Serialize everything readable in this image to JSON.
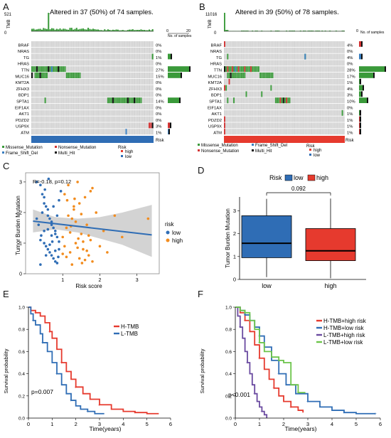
{
  "panels": {
    "A": {
      "letter": "A",
      "title": "Altered in 37 (50%) of 74 samples.",
      "tmb_label": "TMB",
      "tmb_max": "521",
      "tmb_min": "0",
      "nsamp_max": "20",
      "nsamp_min": "0",
      "nsamp_label": "No. of samples",
      "risk_label": "Risk",
      "genes": [
        {
          "name": "BRAF",
          "pct": "0%"
        },
        {
          "name": "NRAS",
          "pct": "0%"
        },
        {
          "name": "TG",
          "pct": "1%"
        },
        {
          "name": "HRAS",
          "pct": "0%"
        },
        {
          "name": "TTN",
          "pct": "27%"
        },
        {
          "name": "MUC16",
          "pct": "15%"
        },
        {
          "name": "KMT2A",
          "pct": "0%"
        },
        {
          "name": "ZFHX3",
          "pct": "0%"
        },
        {
          "name": "BDP1",
          "pct": "0%"
        },
        {
          "name": "SPTA1",
          "pct": "14%"
        },
        {
          "name": "EIF1AX",
          "pct": "0%"
        },
        {
          "name": "AKT1",
          "pct": "0%"
        },
        {
          "name": "PDZD2",
          "pct": "0%"
        },
        {
          "name": "USP9X",
          "pct": "3%"
        },
        {
          "name": "ATM",
          "pct": "1%"
        }
      ],
      "legend": [
        "Missense_Mutation",
        "Nonsense_Mutation",
        "Frame_Shift_Del",
        "Multi_Hit"
      ],
      "risk_legend": [
        "high",
        "low"
      ]
    },
    "B": {
      "letter": "B",
      "title": "Altered in 39 (50%) of 78 samples.",
      "tmb_label": "TMB",
      "tmb_max": "11016",
      "tmb_min": "0",
      "nsamp_max": "",
      "nsamp_min": "0",
      "nsamp_label": "No. of samples",
      "risk_label": "Risk",
      "genes": [
        {
          "name": "BRAF",
          "pct": "4%"
        },
        {
          "name": "NRAS",
          "pct": "0%"
        },
        {
          "name": "TG",
          "pct": "4%"
        },
        {
          "name": "HRAS",
          "pct": "0%"
        },
        {
          "name": "TTN",
          "pct": "28%"
        },
        {
          "name": "MUC16",
          "pct": "17%"
        },
        {
          "name": "KMT2A",
          "pct": "1%"
        },
        {
          "name": "ZFHX3",
          "pct": "4%"
        },
        {
          "name": "BDP1",
          "pct": "3%"
        },
        {
          "name": "SPTA1",
          "pct": "10%"
        },
        {
          "name": "EIF1AX",
          "pct": "0%"
        },
        {
          "name": "AKT1",
          "pct": "1%"
        },
        {
          "name": "PDZD2",
          "pct": "1%"
        },
        {
          "name": "USP9X",
          "pct": "1%"
        },
        {
          "name": "ATM",
          "pct": "1%"
        }
      ],
      "legend": [
        "Missense_Mutation",
        "Frame_Shift_Del",
        "Nonsense_Mutation",
        "Multi_Hit"
      ],
      "risk_legend": [
        "high",
        "low"
      ]
    },
    "C": {
      "letter": "C",
      "annotation": "R=-0.18, p=0.12",
      "ylabel": "Tumor Burden Mutation",
      "xlabel": "Risk score",
      "legend_title": "risk",
      "legend": [
        "low",
        "high"
      ]
    },
    "D": {
      "letter": "D",
      "legend_title": "Risk",
      "legend": [
        "low",
        "high"
      ],
      "pvalue": "0.092",
      "ylabel": "Tumor Burden Mutation"
    },
    "E": {
      "letter": "E",
      "legend": [
        "H-TMB",
        "L-TMB"
      ],
      "pvalue": "p=0.007",
      "ylabel": "Survival probability",
      "xlabel": "Time(years)"
    },
    "F": {
      "letter": "F",
      "legend": [
        "H-TMB+high risk",
        "H-TMB+low risk",
        "L-TMB+high risk",
        "L-TMB+low risk"
      ],
      "pvalue": "p<0.001",
      "ylabel": "Survival probability",
      "xlabel": "Time(years)"
    }
  },
  "colors": {
    "missense": "#3a9a3a",
    "nonsense": "#d33434",
    "frameshift": "#3a7fc1",
    "multihit": "#111111",
    "high": "#e63a2e",
    "low": "#2f6db5",
    "orange": "#f28c1e",
    "gray_bg": "#d3d3d3"
  },
  "chart_data": [
    {
      "type": "scatter",
      "title": "",
      "xlabel": "Risk score",
      "ylabel": "Tumor Burden Mutation",
      "xlim": [
        0,
        3.6
      ],
      "ylim": [
        0,
        3.3
      ],
      "xticks": [
        "1",
        "2",
        "3"
      ],
      "yticks": [
        "0",
        "1",
        "2",
        "3"
      ],
      "series": [
        {
          "name": "low",
          "x": [
            0.3,
            0.4,
            0.45,
            0.5,
            0.5,
            0.55,
            0.6,
            0.6,
            0.65,
            0.7,
            0.7,
            0.75,
            0.8,
            0.8,
            0.85,
            0.35,
            0.4,
            0.5,
            0.55,
            0.6,
            0.65,
            0.7,
            0.75,
            0.8,
            0.85,
            0.9,
            0.9,
            0.45,
            0.6,
            0.7,
            0.3,
            0.5,
            0.65,
            0.8,
            0.9,
            0.55,
            0.75,
            0.4,
            0.85,
            0.95,
            0.62,
            0.72,
            0.52,
            0.42,
            0.88
          ],
          "y": [
            3.0,
            2.9,
            2.6,
            2.5,
            2.3,
            2.2,
            2.1,
            1.9,
            1.8,
            1.7,
            1.6,
            1.5,
            1.4,
            1.3,
            1.2,
            1.6,
            1.1,
            1.0,
            0.9,
            0.8,
            0.7,
            0.6,
            0.5,
            0.4,
            0.35,
            1.05,
            0.8,
            2.0,
            1.45,
            1.25,
            1.8,
            1.4,
            0.95,
            0.75,
            2.4,
            0.6,
            2.2,
            0.3,
            1.9,
            2.7,
            3.1,
            1.05,
            2.75,
            1.25,
            0.55
          ]
        },
        {
          "name": "high",
          "x": [
            1.0,
            1.05,
            1.1,
            1.15,
            1.2,
            1.25,
            1.3,
            1.35,
            1.4,
            1.45,
            1.5,
            1.55,
            1.6,
            1.65,
            1.7,
            1.75,
            1.8,
            1.9,
            2.0,
            2.1,
            1.05,
            1.15,
            1.25,
            1.35,
            1.45,
            1.55,
            1.65,
            1.75,
            1.1,
            1.2,
            1.3,
            1.4,
            1.5,
            1.6,
            1.7,
            1.8,
            2.2,
            2.4,
            2.6,
            3.3,
            1.0,
            1.12,
            1.22,
            1.32,
            1.42,
            1.52
          ],
          "y": [
            1.2,
            0.9,
            1.5,
            2.9,
            0.7,
            1.8,
            2.2,
            1.0,
            3.0,
            0.5,
            1.3,
            0.8,
            2.5,
            1.6,
            0.6,
            1.1,
            0.4,
            2.0,
            0.9,
            1.4,
            2.6,
            1.9,
            0.3,
            1.7,
            2.3,
            1.05,
            0.75,
            2.7,
            0.55,
            1.35,
            2.1,
            0.85,
            1.95,
            0.45,
            1.25,
            2.8,
            0.7,
            1.9,
            1.2,
            1.8,
            0.65,
            2.4,
            1.55,
            2.45,
            1.15,
            0.35
          ]
        }
      ],
      "trend": {
        "x": [
          0.2,
          3.4
        ],
        "y": [
          1.72,
          1.27
        ]
      }
    },
    {
      "type": "box",
      "title": "",
      "categories": [
        "low",
        "high"
      ],
      "ylabel": "Tumor Burden Mutation",
      "ylim": [
        0,
        3.6
      ],
      "yticks": [
        "0",
        "1",
        "2",
        "3"
      ],
      "boxes": [
        {
          "name": "low",
          "min": 0.1,
          "q1": 0.95,
          "median": 1.58,
          "q3": 2.78,
          "max": 3.52
        },
        {
          "name": "high",
          "min": 0.05,
          "q1": 0.82,
          "median": 1.25,
          "q3": 2.22,
          "max": 3.53
        }
      ],
      "annotation": "0.092"
    },
    {
      "type": "line",
      "title": "",
      "xlabel": "Time(years)",
      "ylabel": "Survival probability",
      "xlim": [
        0,
        6
      ],
      "ylim": [
        0,
        1
      ],
      "xticks": [
        "0",
        "1",
        "2",
        "3",
        "4",
        "5",
        "6"
      ],
      "yticks": [
        "0.0",
        "0.2",
        "0.4",
        "0.6",
        "0.8",
        "1.0"
      ],
      "series": [
        {
          "name": "H-TMB",
          "x": [
            0,
            0.1,
            0.3,
            0.5,
            0.7,
            0.9,
            1.0,
            1.2,
            1.4,
            1.6,
            1.8,
            2.0,
            2.3,
            2.6,
            3.0,
            3.5,
            4.0,
            4.5,
            5.0,
            5.5
          ],
          "y": [
            1.0,
            0.97,
            0.95,
            0.92,
            0.86,
            0.78,
            0.72,
            0.62,
            0.5,
            0.42,
            0.35,
            0.28,
            0.22,
            0.17,
            0.12,
            0.08,
            0.06,
            0.05,
            0.04,
            0.04
          ]
        },
        {
          "name": "L-TMB",
          "x": [
            0,
            0.1,
            0.2,
            0.3,
            0.5,
            0.6,
            0.8,
            1.0,
            1.2,
            1.4,
            1.6,
            1.8,
            2.0,
            2.2,
            2.5,
            2.8,
            3.2
          ],
          "y": [
            1.0,
            0.94,
            0.88,
            0.84,
            0.76,
            0.68,
            0.6,
            0.5,
            0.4,
            0.3,
            0.22,
            0.16,
            0.11,
            0.08,
            0.06,
            0.04,
            0.04
          ]
        }
      ]
    },
    {
      "type": "line",
      "title": "",
      "xlabel": "Time(years)",
      "ylabel": "Survival probability",
      "xlim": [
        0,
        6
      ],
      "ylim": [
        0,
        1
      ],
      "xticks": [
        "0",
        "1",
        "2",
        "3",
        "4",
        "5",
        "6"
      ],
      "yticks": [
        "0.0",
        "0.2",
        "0.4",
        "0.6",
        "0.8",
        "1.0"
      ],
      "series": [
        {
          "name": "H-TMB+high risk",
          "x": [
            0,
            0.2,
            0.4,
            0.6,
            0.8,
            1.0,
            1.2,
            1.4,
            1.6,
            1.8,
            2.0,
            2.3,
            2.6,
            2.8
          ],
          "y": [
            1.0,
            0.95,
            0.88,
            0.78,
            0.66,
            0.54,
            0.44,
            0.35,
            0.27,
            0.2,
            0.15,
            0.1,
            0.07,
            0.05
          ]
        },
        {
          "name": "H-TMB+low risk",
          "x": [
            0,
            0.2,
            0.4,
            0.6,
            0.8,
            1.0,
            1.2,
            1.5,
            1.8,
            2.1,
            2.5,
            3.0,
            3.5,
            4.0,
            4.5,
            5.0,
            5.5,
            5.8
          ],
          "y": [
            1.0,
            0.97,
            0.93,
            0.88,
            0.82,
            0.74,
            0.64,
            0.52,
            0.4,
            0.3,
            0.22,
            0.15,
            0.1,
            0.07,
            0.05,
            0.04,
            0.04,
            0.04
          ]
        },
        {
          "name": "L-TMB+high risk",
          "x": [
            0,
            0.1,
            0.2,
            0.3,
            0.4,
            0.5,
            0.6,
            0.7,
            0.8,
            0.9,
            1.0,
            1.1,
            1.2,
            1.3
          ],
          "y": [
            1.0,
            0.92,
            0.82,
            0.72,
            0.6,
            0.5,
            0.4,
            0.3,
            0.22,
            0.15,
            0.1,
            0.06,
            0.03,
            0.0
          ]
        },
        {
          "name": "L-TMB+low risk",
          "x": [
            0,
            0.2,
            0.4,
            0.6,
            0.8,
            1.0,
            1.2,
            1.5,
            1.8,
            2.0,
            2.3,
            2.6,
            2.9
          ],
          "y": [
            1.0,
            0.97,
            0.95,
            0.88,
            0.8,
            0.68,
            0.6,
            0.55,
            0.52,
            0.5,
            0.3,
            0.23,
            0.23
          ]
        }
      ]
    }
  ]
}
